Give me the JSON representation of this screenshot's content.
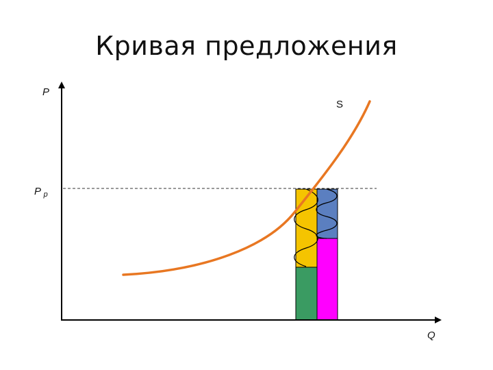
{
  "slide": {
    "title": "Кривая предложения"
  },
  "diagram": {
    "axis_y_label": "P",
    "axis_x_label": "Q",
    "price_level_label_main": "P",
    "price_level_label_sub": "р",
    "curve_label": "S",
    "colors": {
      "axis": "#000000",
      "curve": "#E87722",
      "dashed_line": "#333333",
      "block_yellow": "#F5C400",
      "block_green": "#3A9B62",
      "block_blue": "#5B7FC0",
      "block_magenta": "#FF00FF",
      "spring": "#000000"
    }
  }
}
